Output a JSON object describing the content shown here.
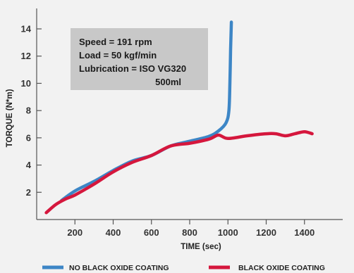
{
  "chart_data": {
    "type": "line",
    "xlabel": "TIME (sec)",
    "ylabel": "TORQUE (N*m)",
    "xlim": [
      0,
      1600
    ],
    "ylim": [
      0,
      15.5
    ],
    "x_ticks": [
      200,
      400,
      600,
      800,
      1000,
      1200,
      1400
    ],
    "y_ticks": [
      2,
      4,
      6,
      8,
      10,
      12,
      14
    ],
    "grid": false,
    "legend_position": "bottom",
    "series": [
      {
        "name": "NO BLACK OXIDE COATING",
        "color": "#3d86c6",
        "points": [
          [
            130,
            1.4
          ],
          [
            200,
            2.1
          ],
          [
            300,
            2.8
          ],
          [
            400,
            3.6
          ],
          [
            500,
            4.3
          ],
          [
            600,
            4.7
          ],
          [
            700,
            5.4
          ],
          [
            800,
            5.75
          ],
          [
            900,
            6.1
          ],
          [
            950,
            6.5
          ],
          [
            990,
            7.1
          ],
          [
            1005,
            8.0
          ],
          [
            1010,
            10.0
          ],
          [
            1014,
            12.5
          ],
          [
            1018,
            14.5
          ]
        ]
      },
      {
        "name": "BLACK OXIDE COATING",
        "color": "#d5173d",
        "points": [
          [
            50,
            0.5
          ],
          [
            100,
            1.1
          ],
          [
            150,
            1.5
          ],
          [
            200,
            1.8
          ],
          [
            300,
            2.6
          ],
          [
            400,
            3.5
          ],
          [
            500,
            4.2
          ],
          [
            600,
            4.7
          ],
          [
            700,
            5.4
          ],
          [
            800,
            5.6
          ],
          [
            900,
            5.9
          ],
          [
            950,
            6.2
          ],
          [
            1000,
            5.95
          ],
          [
            1100,
            6.15
          ],
          [
            1200,
            6.3
          ],
          [
            1250,
            6.3
          ],
          [
            1300,
            6.15
          ],
          [
            1350,
            6.3
          ],
          [
            1400,
            6.45
          ],
          [
            1440,
            6.3
          ]
        ]
      }
    ],
    "annotation": {
      "lines": [
        "Speed = 191 rpm",
        "Load = 50 kgf/min",
        "Lubrication = ISO VG320",
        "500ml"
      ],
      "background": "#c8c8c8"
    }
  }
}
